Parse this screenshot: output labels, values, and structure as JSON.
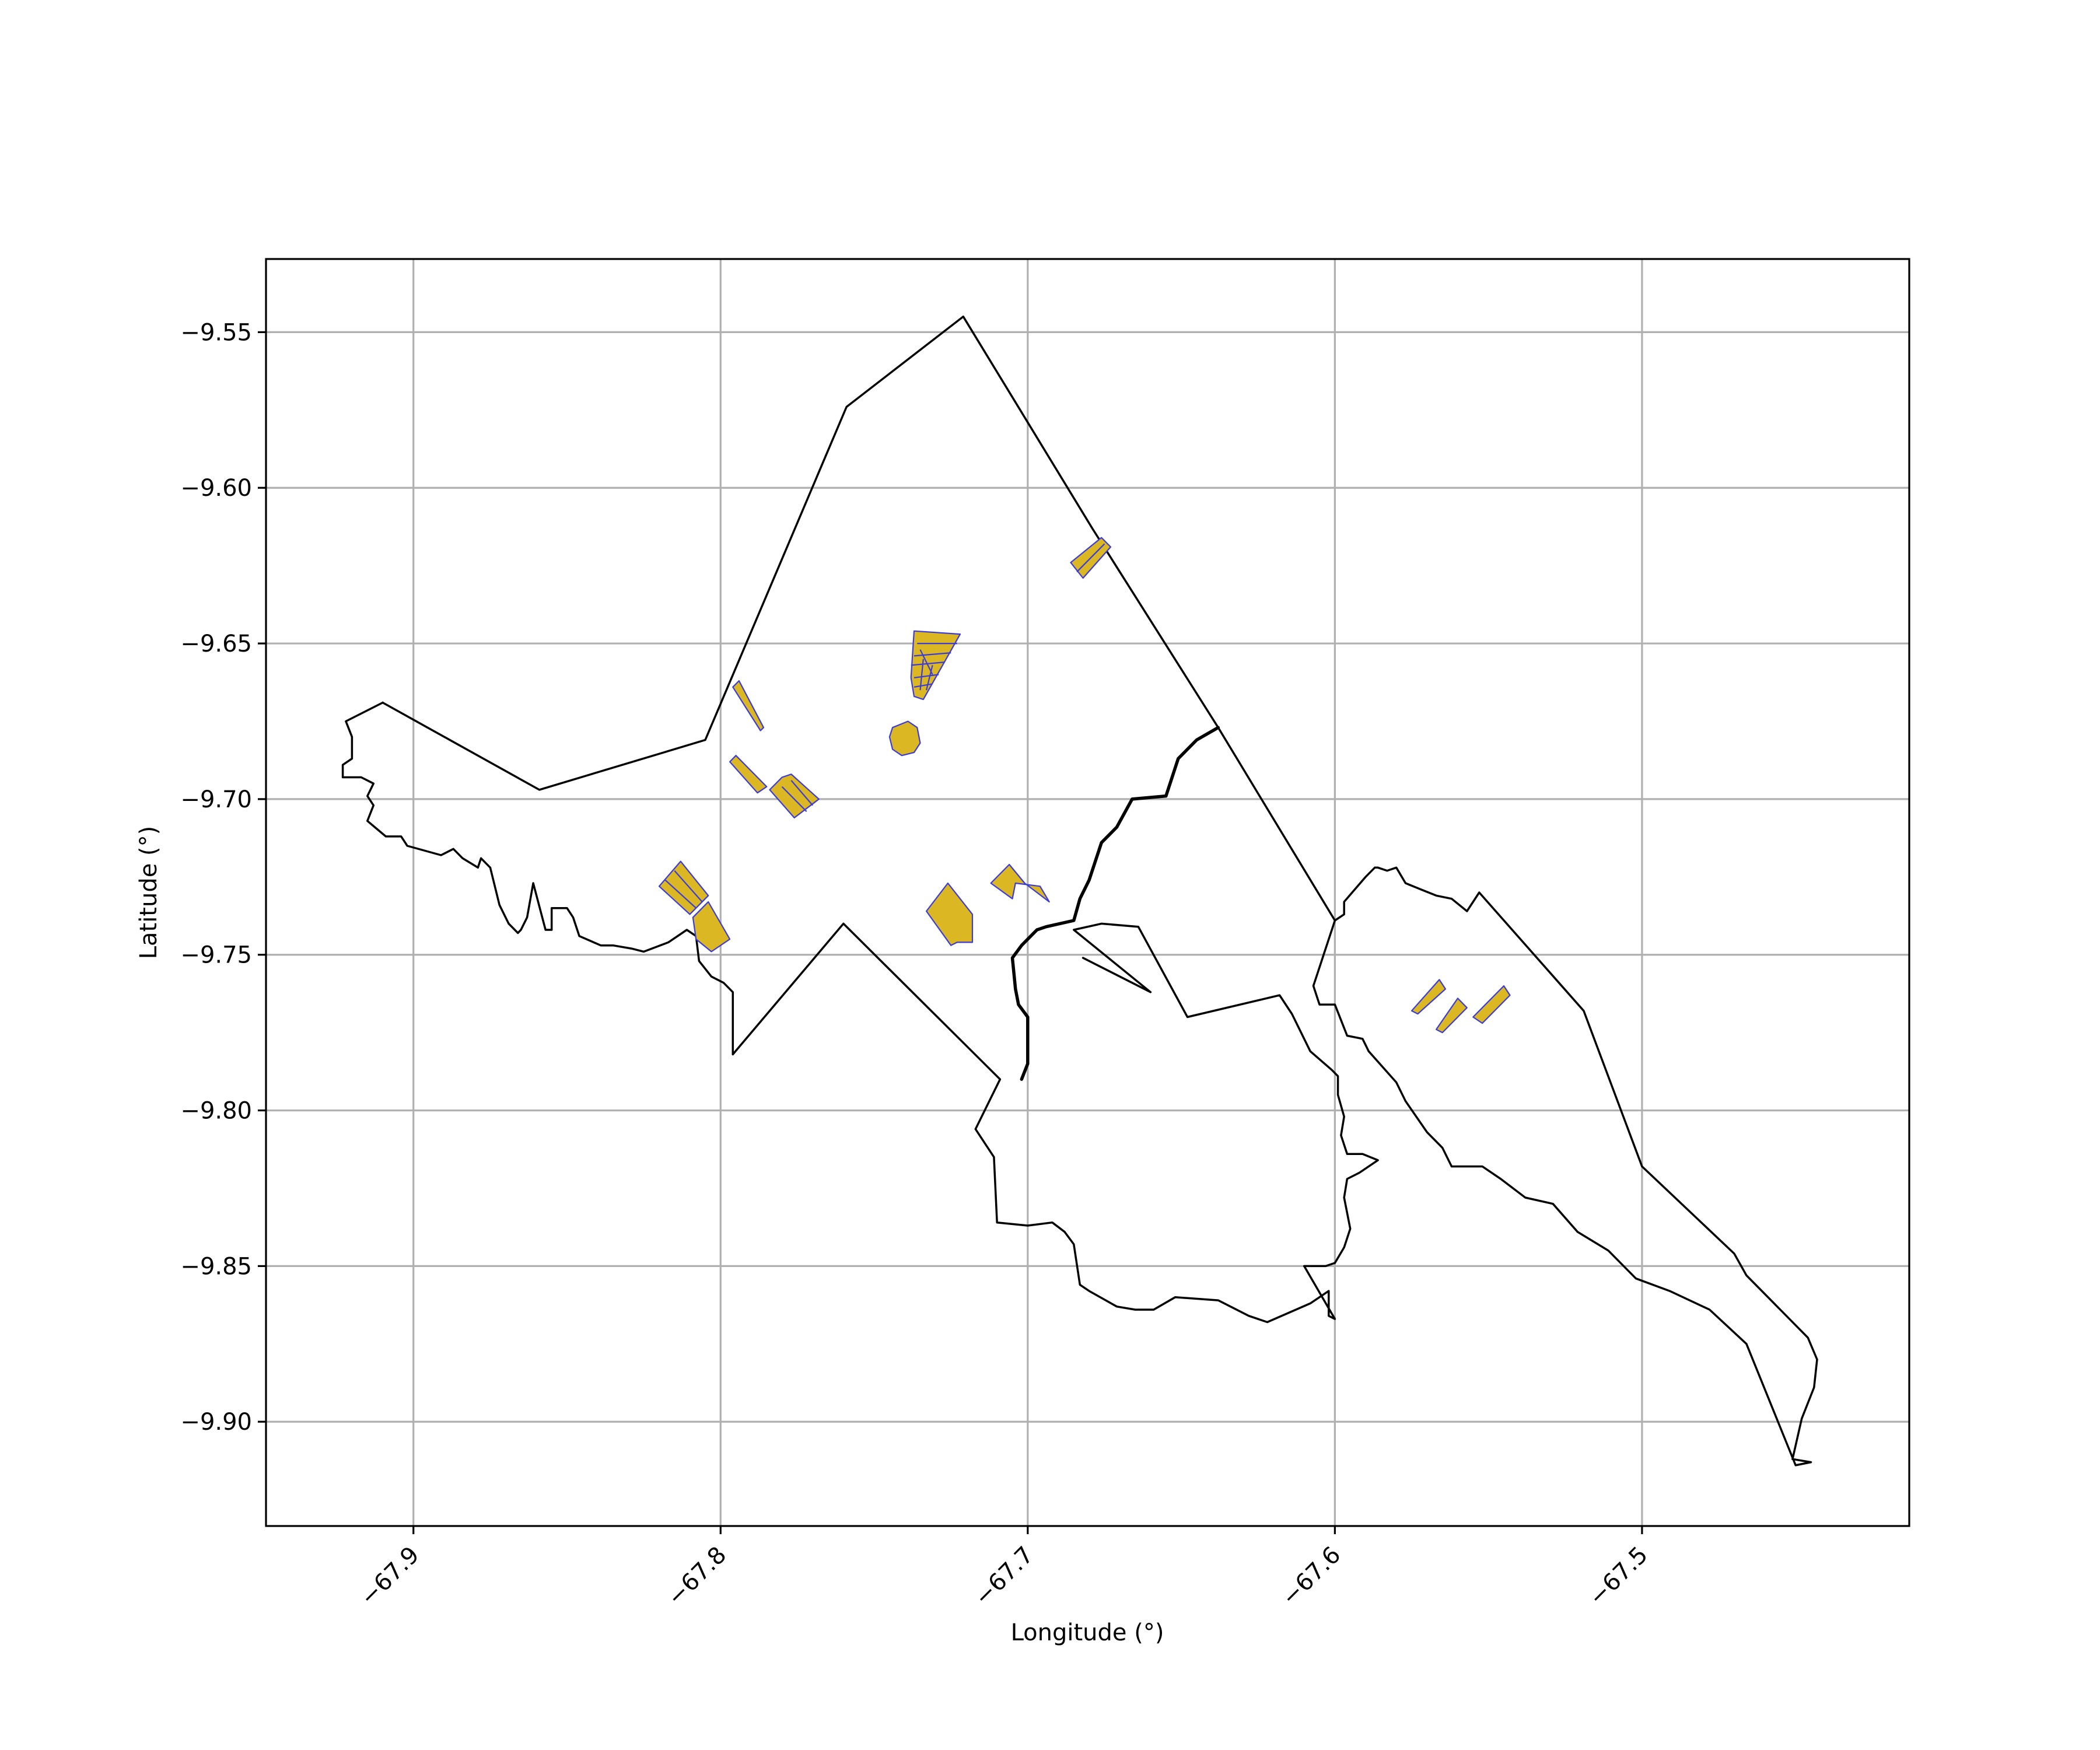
{
  "chart_data": {
    "type": "map",
    "xlabel": "Longitude (°)",
    "ylabel": "Latitude (°)",
    "xlim": [
      -67.948,
      -67.413
    ],
    "ylim": [
      -9.9335,
      -9.5265
    ],
    "x_ticks": [
      -67.9,
      -67.8,
      -67.7,
      -67.6,
      -67.5
    ],
    "x_tick_labels": [
      "−67.9",
      "−67.8",
      "−67.7",
      "−67.6",
      "−67.5"
    ],
    "y_ticks": [
      -9.55,
      -9.6,
      -9.65,
      -9.7,
      -9.75,
      -9.8,
      -9.85,
      -9.9
    ],
    "y_tick_labels": [
      "−9.55",
      "−9.60",
      "−9.65",
      "−9.70",
      "−9.75",
      "−9.80",
      "−9.85",
      "−9.90"
    ],
    "grid": true,
    "colors": {
      "parcel_fill": "#dbb823",
      "parcel_edge": "#3b3bd6",
      "boundary": "#000000",
      "grid": "#b0b0b0"
    },
    "boundaries": [
      {
        "name": "district-west-north",
        "lonlat": [
          [
            -67.91,
            -9.669
          ],
          [
            -67.922,
            -9.675
          ],
          [
            -67.92,
            -9.68
          ],
          [
            -67.92,
            -9.687
          ],
          [
            -67.923,
            -9.689
          ],
          [
            -67.923,
            -9.693
          ],
          [
            -67.917,
            -9.693
          ],
          [
            -67.913,
            -9.695
          ],
          [
            -67.915,
            -9.699
          ],
          [
            -67.913,
            -9.702
          ],
          [
            -67.915,
            -9.707
          ],
          [
            -67.909,
            -9.712
          ],
          [
            -67.904,
            -9.712
          ],
          [
            -67.902,
            -9.715
          ],
          [
            -67.891,
            -9.718
          ],
          [
            -67.887,
            -9.716
          ],
          [
            -67.884,
            -9.719
          ],
          [
            -67.879,
            -9.722
          ],
          [
            -67.878,
            -9.719
          ],
          [
            -67.875,
            -9.722
          ],
          [
            -67.872,
            -9.734
          ],
          [
            -67.869,
            -9.74
          ],
          [
            -67.866,
            -9.743
          ],
          [
            -67.865,
            -9.742
          ],
          [
            -67.863,
            -9.738
          ],
          [
            -67.861,
            -9.727
          ],
          [
            -67.857,
            -9.742
          ],
          [
            -67.855,
            -9.742
          ],
          [
            -67.855,
            -9.735
          ],
          [
            -67.85,
            -9.735
          ],
          [
            -67.848,
            -9.738
          ],
          [
            -67.846,
            -9.744
          ],
          [
            -67.839,
            -9.747
          ],
          [
            -67.835,
            -9.747
          ],
          [
            -67.829,
            -9.748
          ],
          [
            -67.825,
            -9.749
          ],
          [
            -67.817,
            -9.746
          ],
          [
            -67.811,
            -9.742
          ],
          [
            -67.808,
            -9.744
          ],
          [
            -67.807,
            -9.752
          ],
          [
            -67.803,
            -9.757
          ],
          [
            -67.799,
            -9.759
          ],
          [
            -67.796,
            -9.762
          ],
          [
            -67.796,
            -9.782
          ],
          [
            -67.76,
            -9.74
          ],
          [
            -67.709,
            -9.79
          ],
          [
            -67.717,
            -9.806
          ],
          [
            -67.711,
            -9.815
          ],
          [
            -67.71,
            -9.836
          ],
          [
            -67.7,
            -9.837
          ],
          [
            -67.692,
            -9.836
          ],
          [
            -67.688,
            -9.839
          ],
          [
            -67.685,
            -9.843
          ],
          [
            -67.683,
            -9.856
          ],
          [
            -67.68,
            -9.858
          ],
          [
            -67.671,
            -9.863
          ],
          [
            -67.665,
            -9.864
          ],
          [
            -67.659,
            -9.864
          ],
          [
            -67.652,
            -9.86
          ],
          [
            -67.638,
            -9.861
          ],
          [
            -67.628,
            -9.866
          ],
          [
            -67.622,
            -9.868
          ],
          [
            -67.608,
            -9.862
          ],
          [
            -67.602,
            -9.858
          ],
          [
            -67.602,
            -9.866
          ],
          [
            -67.6,
            -9.867
          ],
          [
            -67.61,
            -9.85
          ],
          [
            -67.603,
            -9.85
          ],
          [
            -67.6,
            -9.849
          ],
          [
            -67.597,
            -9.844
          ],
          [
            -67.595,
            -9.838
          ],
          [
            -67.597,
            -9.828
          ],
          [
            -67.596,
            -9.822
          ],
          [
            -67.592,
            -9.82
          ],
          [
            -67.586,
            -9.816
          ],
          [
            -67.591,
            -9.814
          ],
          [
            -67.596,
            -9.814
          ],
          [
            -67.598,
            -9.808
          ],
          [
            -67.597,
            -9.802
          ],
          [
            -67.599,
            -9.795
          ],
          [
            -67.599,
            -9.789
          ],
          [
            -67.601,
            -9.787
          ],
          [
            -67.608,
            -9.781
          ],
          [
            -67.614,
            -9.769
          ],
          [
            -67.618,
            -9.763
          ],
          [
            -67.648,
            -9.77
          ],
          [
            -67.664,
            -9.741
          ],
          [
            -67.676,
            -9.74
          ],
          [
            -67.685,
            -9.742
          ],
          [
            -67.66,
            -9.762
          ],
          [
            -67.682,
            -9.751
          ]
        ]
      },
      {
        "name": "district-north-main",
        "lonlat": [
          [
            -67.91,
            -9.669
          ],
          [
            -67.859,
            -9.697
          ],
          [
            -67.805,
            -9.681
          ],
          [
            -67.759,
            -9.574
          ],
          [
            -67.721,
            -9.545
          ],
          [
            -67.679,
            -9.613
          ],
          [
            -67.638,
            -9.677
          ],
          [
            -67.6,
            -9.739
          ],
          [
            -67.597,
            -9.737
          ],
          [
            -67.597,
            -9.733
          ],
          [
            -67.59,
            -9.725
          ],
          [
            -67.587,
            -9.722
          ],
          [
            -67.586,
            -9.722
          ],
          [
            -67.583,
            -9.723
          ],
          [
            -67.58,
            -9.722
          ],
          [
            -67.577,
            -9.727
          ],
          [
            -67.572,
            -9.729
          ],
          [
            -67.567,
            -9.731
          ],
          [
            -67.562,
            -9.732
          ],
          [
            -67.557,
            -9.736
          ],
          [
            -67.553,
            -9.73
          ],
          [
            -67.519,
            -9.768
          ],
          [
            -67.5,
            -9.818
          ],
          [
            -67.47,
            -9.846
          ],
          [
            -67.466,
            -9.853
          ],
          [
            -67.457,
            -9.862
          ],
          [
            -67.446,
            -9.873
          ],
          [
            -67.443,
            -9.88
          ],
          [
            -67.444,
            -9.889
          ],
          [
            -67.448,
            -9.899
          ],
          [
            -67.451,
            -9.912
          ],
          [
            -67.445,
            -9.913
          ],
          [
            -67.45,
            -9.914
          ],
          [
            -67.466,
            -9.875
          ],
          [
            -67.478,
            -9.864
          ],
          [
            -67.491,
            -9.858
          ],
          [
            -67.502,
            -9.854
          ],
          [
            -67.511,
            -9.845
          ],
          [
            -67.521,
            -9.839
          ],
          [
            -67.529,
            -9.83
          ],
          [
            -67.538,
            -9.828
          ],
          [
            -67.546,
            -9.822
          ],
          [
            -67.552,
            -9.818
          ],
          [
            -67.562,
            -9.818
          ],
          [
            -67.565,
            -9.812
          ],
          [
            -67.57,
            -9.807
          ],
          [
            -67.577,
            -9.797
          ],
          [
            -67.58,
            -9.791
          ],
          [
            -67.589,
            -9.781
          ],
          [
            -67.591,
            -9.777
          ],
          [
            -67.596,
            -9.776
          ],
          [
            -67.598,
            -9.771
          ],
          [
            -67.6,
            -9.766
          ],
          [
            -67.605,
            -9.766
          ],
          [
            -67.607,
            -9.76
          ],
          [
            -67.606,
            -9.757
          ],
          [
            -67.604,
            -9.751
          ],
          [
            -67.6,
            -9.739
          ]
        ]
      }
    ],
    "rivers": [
      {
        "name": "river-main",
        "lonlat": [
          [
            -67.638,
            -9.677
          ],
          [
            -67.645,
            -9.681
          ],
          [
            -67.651,
            -9.687
          ],
          [
            -67.655,
            -9.699
          ],
          [
            -67.666,
            -9.7
          ],
          [
            -67.671,
            -9.709
          ],
          [
            -67.676,
            -9.714
          ],
          [
            -67.68,
            -9.726
          ],
          [
            -67.683,
            -9.732
          ],
          [
            -67.685,
            -9.739
          ],
          [
            -67.694,
            -9.741
          ],
          [
            -67.697,
            -9.742
          ],
          [
            -67.702,
            -9.747
          ],
          [
            -67.705,
            -9.751
          ],
          [
            -67.704,
            -9.761
          ],
          [
            -67.703,
            -9.766
          ],
          [
            -67.7,
            -9.77
          ],
          [
            -67.7,
            -9.775
          ],
          [
            -67.7,
            -9.785
          ],
          [
            -67.702,
            -9.79
          ]
        ]
      }
    ],
    "parcels": [
      {
        "name": "parcel-north-strip",
        "lonlat": [
          [
            -67.682,
            -9.629
          ],
          [
            -67.686,
            -9.624
          ],
          [
            -67.676,
            -9.616
          ],
          [
            -67.673,
            -9.619
          ]
        ],
        "divisions": [
          [
            [
              -67.684,
              -9.627
            ],
            [
              -67.675,
              -9.618
            ]
          ]
        ]
      },
      {
        "name": "parcel-fan-cluster",
        "lonlat": [
          [
            -67.737,
            -9.646
          ],
          [
            -67.722,
            -9.647
          ],
          [
            -67.734,
            -9.668
          ],
          [
            -67.737,
            -9.667
          ],
          [
            -67.738,
            -9.661
          ]
        ],
        "divisions": [
          [
            [
              -67.736,
              -9.65
            ],
            [
              -67.723,
              -9.65
            ]
          ],
          [
            [
              -67.737,
              -9.654
            ],
            [
              -67.725,
              -9.653
            ]
          ],
          [
            [
              -67.738,
              -9.657
            ],
            [
              -67.727,
              -9.656
            ]
          ],
          [
            [
              -67.737,
              -9.661
            ],
            [
              -67.729,
              -9.66
            ]
          ],
          [
            [
              -67.737,
              -9.664
            ],
            [
              -67.731,
              -9.663
            ]
          ],
          [
            [
              -67.735,
              -9.652
            ],
            [
              -67.731,
              -9.66
            ]
          ],
          [
            [
              -67.734,
              -9.655
            ],
            [
              -67.735,
              -9.665
            ]
          ],
          [
            [
              -67.731,
              -9.657
            ],
            [
              -67.733,
              -9.665
            ]
          ]
        ]
      },
      {
        "name": "parcel-west-sliver",
        "lonlat": [
          [
            -67.796,
            -9.664
          ],
          [
            -67.794,
            -9.662
          ],
          [
            -67.786,
            -9.677
          ],
          [
            -67.787,
            -9.678
          ]
        ],
        "divisions": []
      },
      {
        "name": "parcel-round",
        "lonlat": [
          [
            -67.744,
            -9.677
          ],
          [
            -67.739,
            -9.675
          ],
          [
            -67.736,
            -9.677
          ],
          [
            -67.735,
            -9.682
          ],
          [
            -67.737,
            -9.685
          ],
          [
            -67.741,
            -9.686
          ],
          [
            -67.744,
            -9.684
          ],
          [
            -67.745,
            -9.68
          ]
        ],
        "divisions": []
      },
      {
        "name": "parcel-west-diag",
        "lonlat": [
          [
            -67.797,
            -9.688
          ],
          [
            -67.795,
            -9.686
          ],
          [
            -67.785,
            -9.696
          ],
          [
            -67.788,
            -9.698
          ]
        ],
        "divisions": []
      },
      {
        "name": "parcel-west-block",
        "lonlat": [
          [
            -67.784,
            -9.697
          ],
          [
            -67.78,
            -9.693
          ],
          [
            -67.777,
            -9.692
          ],
          [
            -67.768,
            -9.7
          ],
          [
            -67.776,
            -9.706
          ]
        ],
        "divisions": [
          [
            [
              -67.78,
              -9.696
            ],
            [
              -67.772,
              -9.704
            ]
          ],
          [
            [
              -67.777,
              -9.694
            ],
            [
              -67.77,
              -9.702
            ]
          ]
        ]
      },
      {
        "name": "parcel-southwest-block",
        "lonlat": [
          [
            -67.82,
            -9.728
          ],
          [
            -67.813,
            -9.72
          ],
          [
            -67.804,
            -9.731
          ],
          [
            -67.81,
            -9.737
          ]
        ],
        "divisions": [
          [
            [
              -67.815,
              -9.723
            ],
            [
              -67.806,
              -9.733
            ]
          ],
          [
            [
              -67.818,
              -9.726
            ],
            [
              -67.808,
              -9.735
            ]
          ]
        ]
      },
      {
        "name": "parcel-southwest-angle",
        "lonlat": [
          [
            -67.809,
            -9.738
          ],
          [
            -67.804,
            -9.733
          ],
          [
            -67.797,
            -9.745
          ],
          [
            -67.803,
            -9.749
          ],
          [
            -67.808,
            -9.745
          ]
        ],
        "divisions": []
      },
      {
        "name": "parcel-center-large",
        "lonlat": [
          [
            -67.733,
            -9.736
          ],
          [
            -67.726,
            -9.727
          ],
          [
            -67.718,
            -9.737
          ],
          [
            -67.718,
            -9.746
          ],
          [
            -67.723,
            -9.746
          ],
          [
            -67.725,
            -9.747
          ]
        ],
        "divisions": []
      },
      {
        "name": "parcel-river-block",
        "lonlat": [
          [
            -67.712,
            -9.727
          ],
          [
            -67.706,
            -9.721
          ],
          [
            -67.701,
            -9.727
          ],
          [
            -67.693,
            -9.733
          ],
          [
            -67.696,
            -9.728
          ],
          [
            -67.704,
            -9.727
          ],
          [
            -67.705,
            -9.732
          ]
        ],
        "divisions": []
      },
      {
        "name": "parcel-east-1",
        "lonlat": [
          [
            -67.575,
            -9.768
          ],
          [
            -67.566,
            -9.758
          ],
          [
            -67.564,
            -9.761
          ],
          [
            -67.573,
            -9.769
          ]
        ],
        "divisions": []
      },
      {
        "name": "parcel-east-2",
        "lonlat": [
          [
            -67.567,
            -9.774
          ],
          [
            -67.56,
            -9.764
          ],
          [
            -67.557,
            -9.767
          ],
          [
            -67.565,
            -9.775
          ]
        ],
        "divisions": []
      },
      {
        "name": "parcel-east-3",
        "lonlat": [
          [
            -67.555,
            -9.77
          ],
          [
            -67.545,
            -9.76
          ],
          [
            -67.543,
            -9.763
          ],
          [
            -67.552,
            -9.772
          ]
        ],
        "divisions": []
      }
    ]
  }
}
